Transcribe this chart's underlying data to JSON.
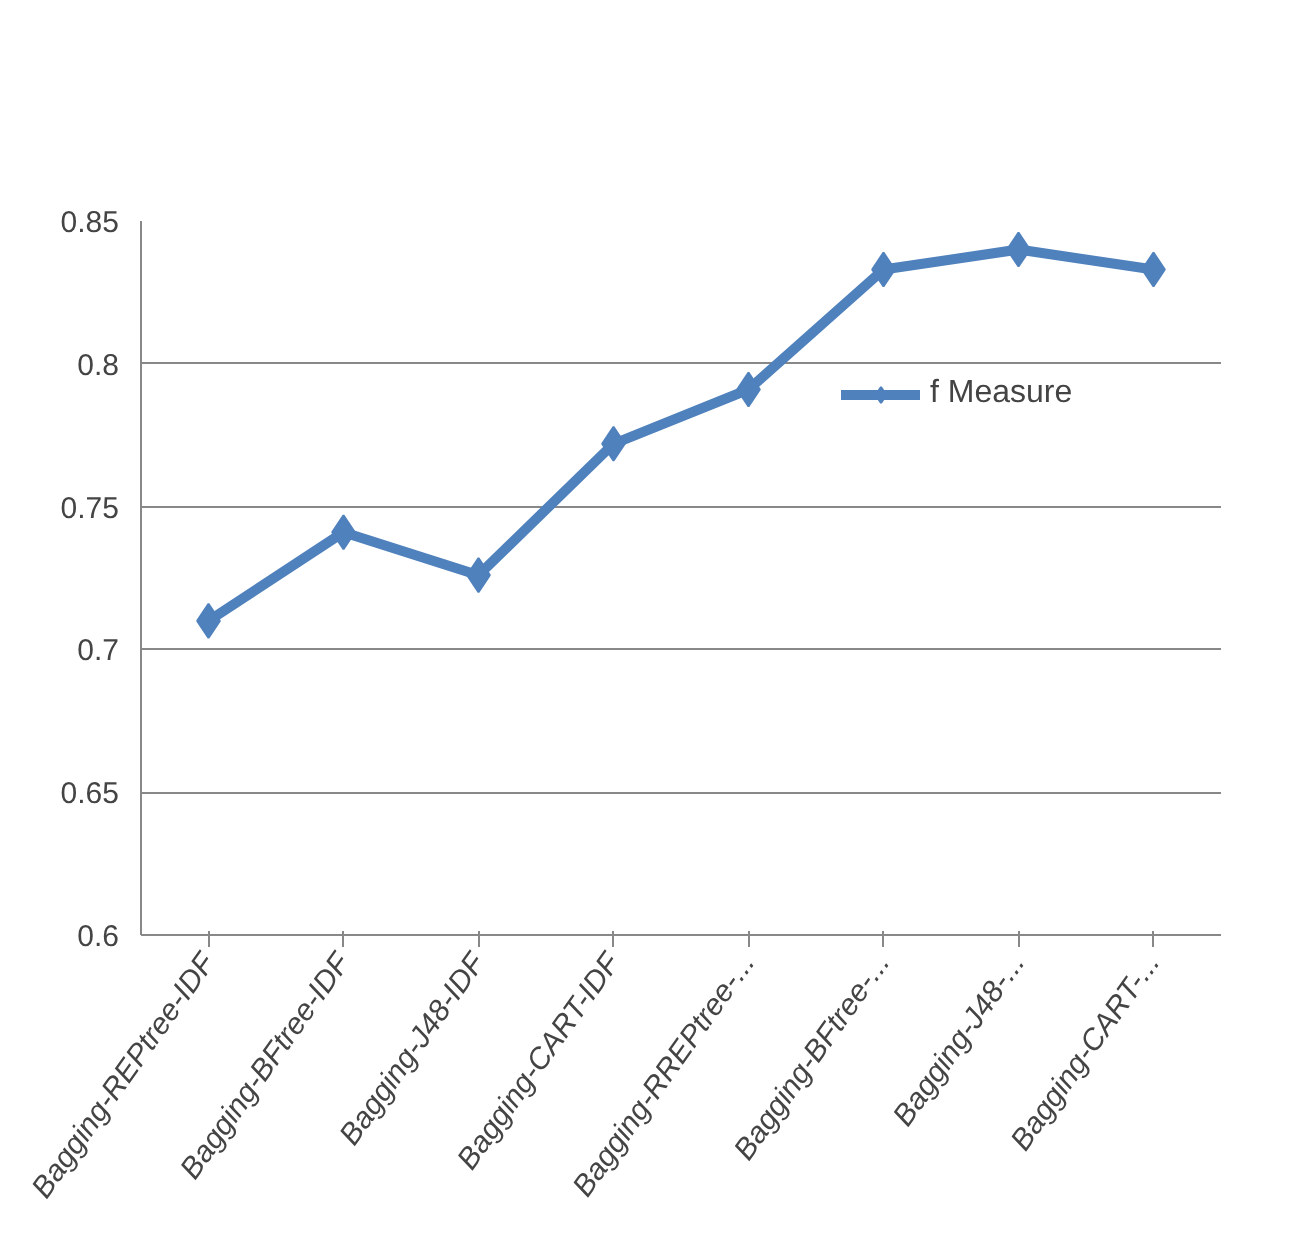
{
  "chart_data": {
    "type": "line",
    "categories": [
      "Bagging-REPtree-IDF",
      "Bagging-BFtree-IDF",
      "Bagging-J48-IDF",
      "Bagging-CART-IDF",
      "Bagging-RREPtree-...",
      "Bagging-BFtree-...",
      "Bagging-J48-...",
      "Bagging-CART-..."
    ],
    "series": [
      {
        "name": "f Measure",
        "color": "#4f81bd",
        "values": [
          0.71,
          0.741,
          0.726,
          0.772,
          0.791,
          0.833,
          0.84,
          0.833
        ]
      }
    ],
    "ylim": [
      0.6,
      0.85
    ],
    "yticks": [
      0.6,
      0.65,
      0.7,
      0.75,
      0.8,
      0.85
    ],
    "grid": "y",
    "legend": "right",
    "marker": "diamond",
    "line_style": "solid"
  }
}
